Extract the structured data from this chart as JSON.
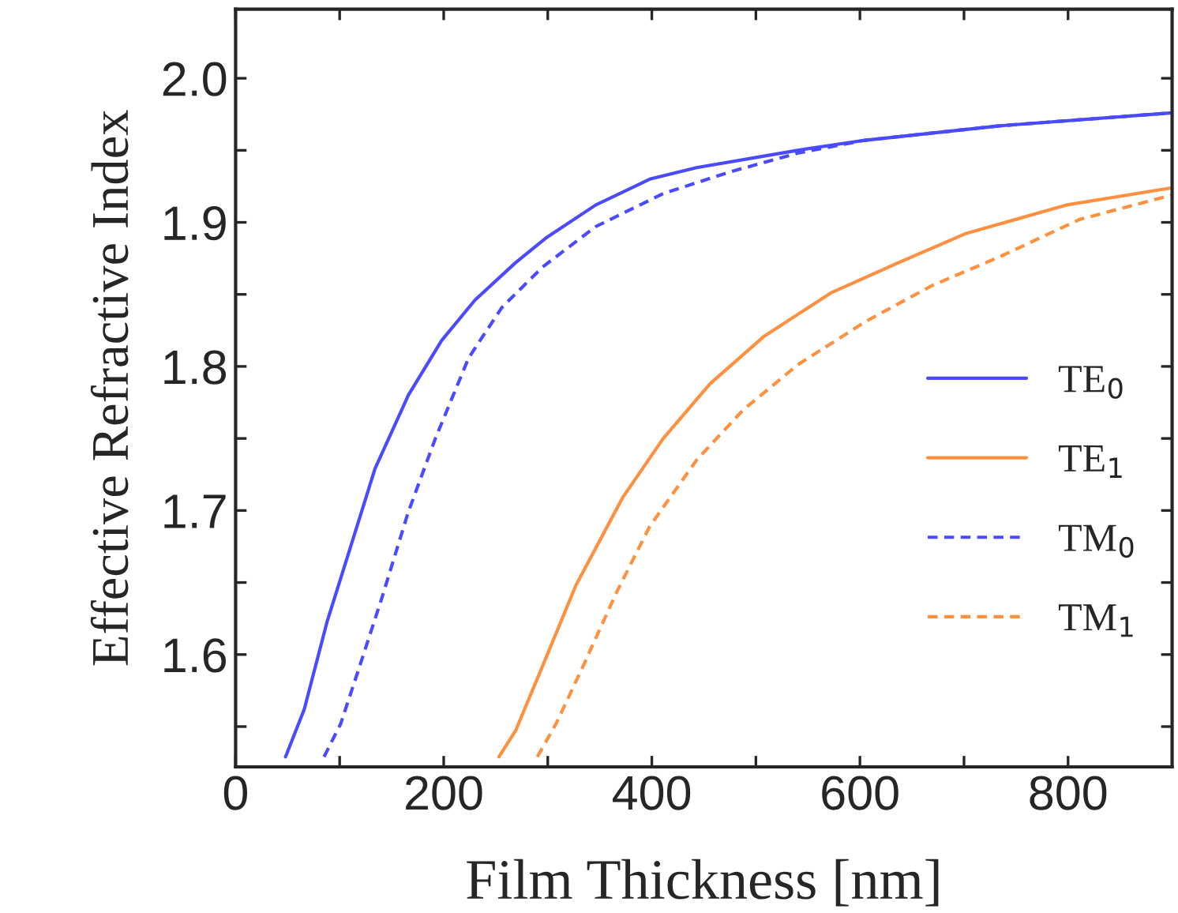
{
  "chart_data": {
    "type": "line",
    "xlabel": "Film Thickness [nm]",
    "ylabel": "Effective Refractive Index",
    "xlim": [
      0,
      900
    ],
    "ylim": [
      1.522,
      2.048
    ],
    "xticks": [
      0,
      {
        "value": 100,
        "label": null
      },
      200,
      {
        "value": 300,
        "label": null
      },
      400,
      {
        "value": 500,
        "label": null
      },
      600,
      {
        "value": 700,
        "label": null
      },
      800
    ],
    "yticks": [
      {
        "value": 1.55,
        "label": null
      },
      1.6,
      {
        "value": 1.65,
        "label": null
      },
      1.7,
      {
        "value": 1.75,
        "label": null
      },
      1.8,
      {
        "value": 1.85,
        "label": null
      },
      1.9,
      {
        "value": 1.95,
        "label": null
      },
      {
        "value": 2.0,
        "label": "2.0"
      }
    ],
    "legend": "right",
    "grid": false,
    "marker": "none",
    "series": [
      {
        "name": "TE$_{0}$",
        "color": "#4a4aff",
        "line_style": "solid",
        "x": [
          48,
          66,
          88,
          108,
          134,
          166,
          198,
          230,
          269,
          298,
          346,
          398,
          443,
          540,
          605,
          734,
          900
        ],
        "values": [
          1.529,
          1.562,
          1.623,
          1.669,
          1.729,
          1.78,
          1.818,
          1.846,
          1.872,
          1.889,
          1.912,
          1.93,
          1.938,
          1.95,
          1.957,
          1.967,
          1.976
        ]
      },
      {
        "name": "TE$_{1}$",
        "color": "#ff9040",
        "line_style": "solid",
        "x": [
          253,
          269,
          295,
          327,
          372,
          411,
          456,
          508,
          572,
          637,
          701,
          798,
          900
        ],
        "values": [
          1.529,
          1.547,
          1.592,
          1.648,
          1.709,
          1.75,
          1.788,
          1.821,
          1.851,
          1.872,
          1.892,
          1.912,
          1.924
        ]
      },
      {
        "name": "TM$_{0}$",
        "color": "#4a4aff",
        "line_style": "dashed",
        "x": [
          85,
          101,
          117,
          140,
          166,
          192,
          224,
          256,
          295,
          346,
          411,
          475,
          540,
          605,
          734,
          900
        ],
        "values": [
          1.529,
          1.552,
          1.587,
          1.638,
          1.699,
          1.75,
          1.806,
          1.841,
          1.869,
          1.897,
          1.92,
          1.935,
          1.948,
          1.957,
          1.967,
          1.976
        ]
      },
      {
        "name": "TM$_{1}$",
        "color": "#ff9040",
        "line_style": "dashed",
        "x": [
          290,
          308,
          334,
          366,
          398,
          443,
          488,
          540,
          605,
          669,
          734,
          811,
          900
        ],
        "values": [
          1.529,
          1.552,
          1.592,
          1.643,
          1.689,
          1.735,
          1.77,
          1.801,
          1.831,
          1.856,
          1.876,
          1.902,
          1.919
        ]
      }
    ]
  }
}
